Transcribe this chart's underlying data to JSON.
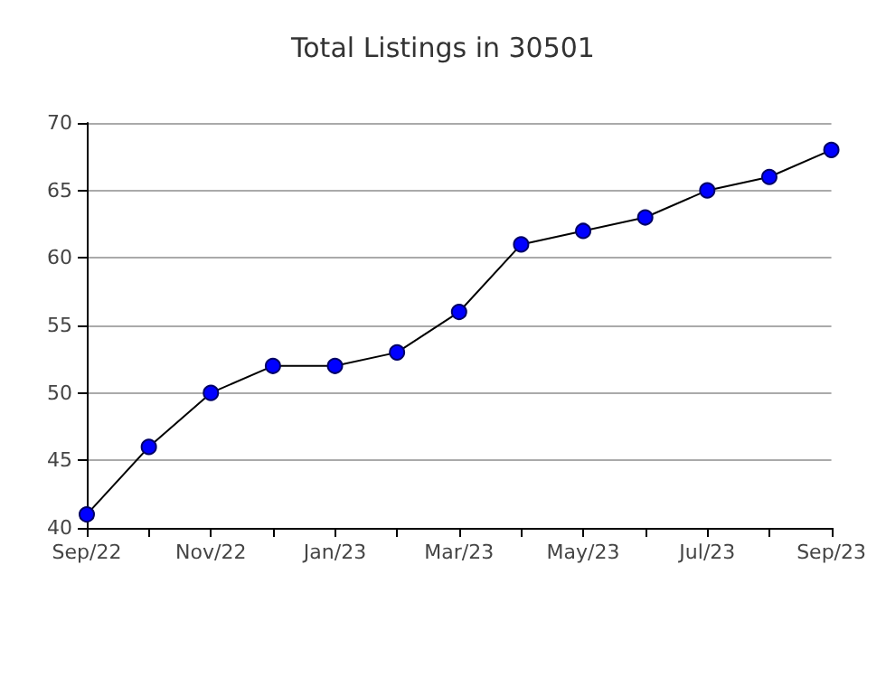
{
  "chart_data": {
    "type": "line",
    "title": "Total Listings in 30501",
    "categories": [
      "Sep/22",
      null,
      "Nov/22",
      null,
      "Jan/23",
      null,
      "Mar/23",
      null,
      "May/23",
      null,
      "Jul/23",
      null,
      "Sep/23"
    ],
    "series": [
      {
        "color": "#0000ff",
        "values": [
          41,
          46,
          50,
          52,
          52,
          53,
          56,
          61,
          62,
          63,
          65,
          66,
          68
        ]
      }
    ],
    "ylim": [
      40,
      70
    ],
    "yticks": [
      40,
      45,
      50,
      55,
      60,
      65,
      70
    ],
    "grid": "y",
    "marker": "circle",
    "line_style": "solid"
  }
}
